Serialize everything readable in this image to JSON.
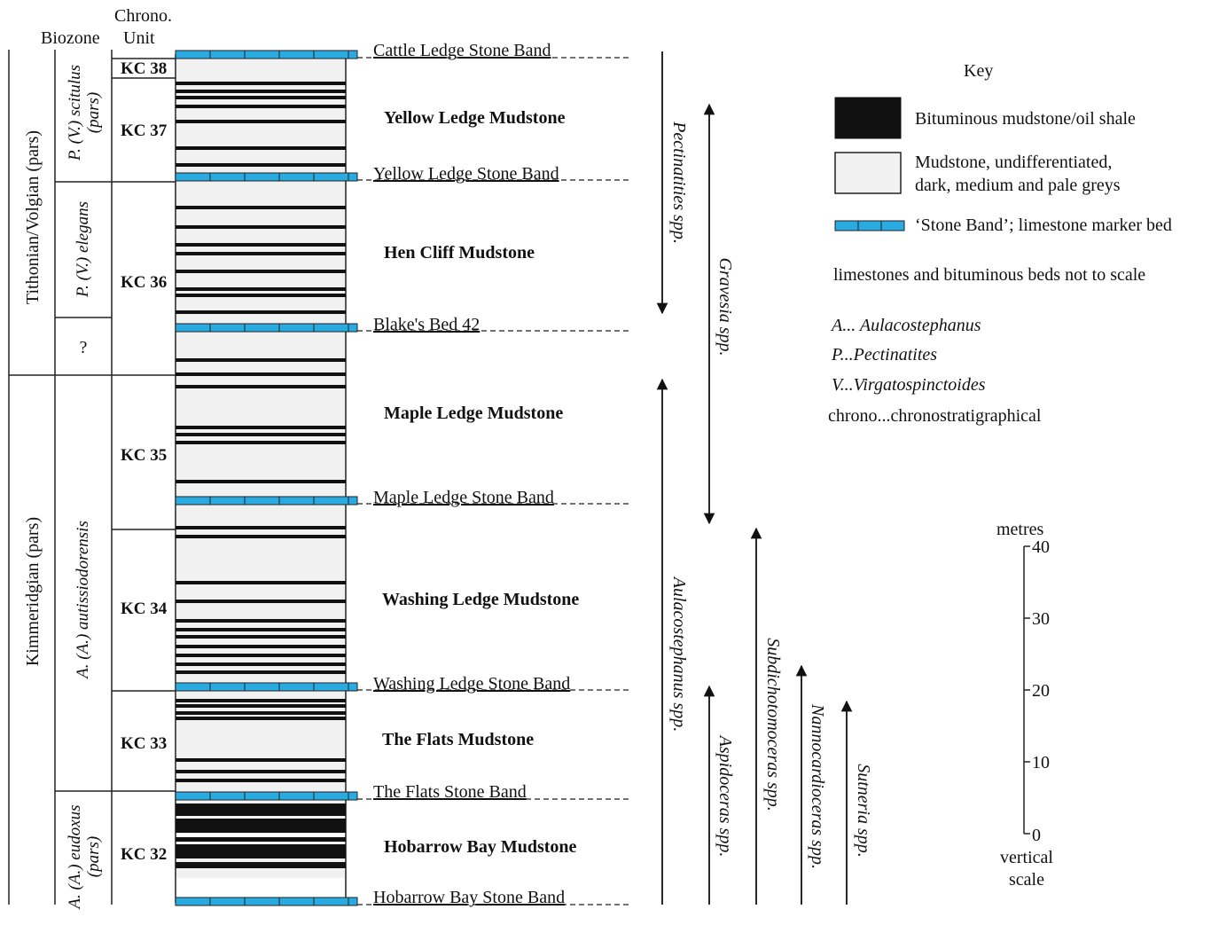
{
  "headers": {
    "biozone": "Biozone",
    "chrono_line1": "Chrono.",
    "chrono_line2": "Unit"
  },
  "stages": [
    {
      "label": "Tithonian/Volgian (pars)"
    },
    {
      "label": "Kimmeridgian (pars)"
    }
  ],
  "biozones": [
    {
      "line1": "P. (V.) scitulus",
      "line2": "(pars)"
    },
    {
      "line1": "P. (V.) elegans",
      "line2": ""
    },
    {
      "line1": "?",
      "line2": ""
    },
    {
      "line1": "A. (A.) autissiodorensis",
      "line2": ""
    },
    {
      "line1": "A. (A.) eudoxus",
      "line2": "(pars)"
    }
  ],
  "chrono_units": [
    "KC 38",
    "KC 37",
    "KC 36",
    "KC 35",
    "KC 34",
    "KC 33",
    "KC 32"
  ],
  "mudstones": [
    "Yellow Ledge Mudstone",
    "Hen Cliff Mudstone",
    "Maple Ledge Mudstone",
    "Washing Ledge Mudstone",
    "The Flats Mudstone",
    "Hobarrow Bay Mudstone"
  ],
  "marker_beds": [
    "Cattle Ledge Stone Band",
    "Yellow Ledge Stone Band",
    "Blake's Bed 42",
    "Maple Ledge Stone Band",
    "Washing Ledge Stone Band",
    "The Flats Stone Band",
    "Hobarrow Bay Stone Band"
  ],
  "taxa_ranges": [
    "Pectinatities spp.",
    "Gravesia spp.",
    "Aulacostephanus spp.",
    "Subdichotomoceras spp.",
    "Aspidoceras spp.",
    "Nannocardioceras spp.",
    "Sutneria spp."
  ],
  "key": {
    "title": "Key",
    "bituminous": "Bituminous mudstone/oil shale",
    "mudstone_line1": "Mudstone, undifferentiated,",
    "mudstone_line2": "dark, medium and pale greys",
    "stone_band": "‘Stone Band’; limestone marker bed",
    "not_to_scale": "limestones and bituminous beds not to scale",
    "abbr_a_prefix": "A... ",
    "abbr_a_name": "Aulacostephanus",
    "abbr_p": "P...Pectinatites",
    "abbr_v": "V...Virgatospinctoides",
    "abbr_chrono": "chrono...chronostratigraphical"
  },
  "scale": {
    "unit": "metres",
    "ticks": [
      "40",
      "30",
      "20",
      "10",
      "0"
    ],
    "caption_line1": "vertical",
    "caption_line2": "scale"
  },
  "colors": {
    "stone_band": "#29abe2",
    "mudstone": "#f1f1f1",
    "bituminous": "#111111",
    "line": "#222222"
  }
}
